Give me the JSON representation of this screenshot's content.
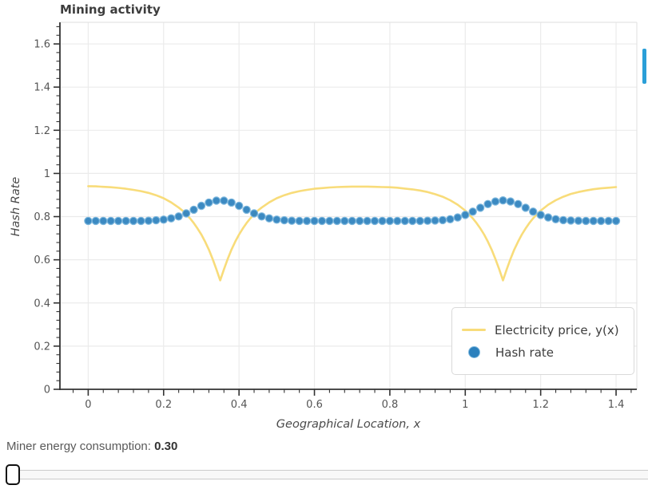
{
  "header": {
    "title": "Mining activity"
  },
  "chart_data": {
    "type": "line",
    "title": "Mining activity",
    "xlabel": "Geographical Location, x",
    "ylabel": "Hash Rate",
    "xlim": [
      -0.075,
      1.455
    ],
    "ylim": [
      0,
      1.7
    ],
    "grid": true,
    "minor_tick_step": 0.04,
    "legend_position": "lower-right",
    "x_ticks": {
      "values": [
        0,
        0.2,
        0.4,
        0.6,
        0.8,
        1,
        1.2,
        1.4
      ],
      "labels": [
        "0",
        "0.2",
        "0.4",
        "0.6",
        "0.8",
        "1",
        "1.2",
        "1.4"
      ]
    },
    "y_ticks": {
      "values": [
        0,
        0.2,
        0.4,
        0.6,
        0.8,
        1,
        1.2,
        1.4,
        1.6
      ],
      "labels": [
        "0",
        "0.2",
        "0.4",
        "0.6",
        "0.8",
        "1",
        "1.2",
        "1.4",
        "1.6"
      ]
    },
    "colors": {
      "grid": "#ebebeb",
      "spine_dark": "#333333",
      "spine_light": "#e4e4e4",
      "tick": "#333333",
      "tick_label": "#555555"
    },
    "series": [
      {
        "name": "Electricity price, y(x)",
        "style": "line",
        "color": "#F8DC7A",
        "x": [
          0,
          0.02,
          0.04,
          0.06,
          0.08,
          0.1,
          0.12,
          0.14,
          0.16,
          0.18,
          0.2,
          0.22,
          0.24,
          0.25,
          0.26,
          0.27,
          0.28,
          0.29,
          0.3,
          0.31,
          0.32,
          0.33,
          0.34,
          0.35,
          0.36,
          0.37,
          0.38,
          0.39,
          0.4,
          0.41,
          0.42,
          0.43,
          0.44,
          0.45,
          0.46,
          0.48,
          0.5,
          0.52,
          0.54,
          0.56,
          0.58,
          0.6,
          0.62,
          0.64,
          0.66,
          0.68,
          0.7,
          0.72,
          0.74,
          0.76,
          0.78,
          0.8,
          0.82,
          0.84,
          0.86,
          0.88,
          0.9,
          0.92,
          0.94,
          0.96,
          0.98,
          1,
          1.01,
          1.02,
          1.03,
          1.04,
          1.05,
          1.06,
          1.07,
          1.08,
          1.09,
          1.1,
          1.11,
          1.12,
          1.13,
          1.14,
          1.15,
          1.16,
          1.17,
          1.18,
          1.19,
          1.2,
          1.22,
          1.24,
          1.26,
          1.28,
          1.3,
          1.32,
          1.34,
          1.36,
          1.38,
          1.4
        ],
        "y": [
          0.941,
          0.94,
          0.938,
          0.936,
          0.933,
          0.929,
          0.924,
          0.918,
          0.91,
          0.899,
          0.885,
          0.866,
          0.842,
          0.828,
          0.811,
          0.792,
          0.77,
          0.745,
          0.717,
          0.684,
          0.647,
          0.604,
          0.556,
          0.505,
          0.556,
          0.604,
          0.647,
          0.684,
          0.717,
          0.745,
          0.77,
          0.792,
          0.811,
          0.828,
          0.842,
          0.866,
          0.885,
          0.899,
          0.91,
          0.918,
          0.924,
          0.929,
          0.932,
          0.935,
          0.937,
          0.938,
          0.939,
          0.939,
          0.939,
          0.938,
          0.937,
          0.936,
          0.934,
          0.93,
          0.926,
          0.921,
          0.914,
          0.904,
          0.892,
          0.876,
          0.855,
          0.828,
          0.811,
          0.792,
          0.77,
          0.745,
          0.717,
          0.684,
          0.647,
          0.604,
          0.556,
          0.505,
          0.556,
          0.604,
          0.647,
          0.684,
          0.717,
          0.745,
          0.77,
          0.792,
          0.811,
          0.828,
          0.855,
          0.876,
          0.892,
          0.905,
          0.914,
          0.921,
          0.927,
          0.931,
          0.934,
          0.937
        ]
      },
      {
        "name": "Hash rate",
        "style": "scatter",
        "color": "#2B80BD",
        "x": [
          0,
          0.02,
          0.04,
          0.06,
          0.08,
          0.1,
          0.12,
          0.14,
          0.16,
          0.18,
          0.2,
          0.22,
          0.24,
          0.26,
          0.28,
          0.3,
          0.32,
          0.34,
          0.36,
          0.38,
          0.4,
          0.42,
          0.44,
          0.46,
          0.48,
          0.5,
          0.52,
          0.54,
          0.56,
          0.58,
          0.6,
          0.62,
          0.64,
          0.66,
          0.68,
          0.7,
          0.72,
          0.74,
          0.76,
          0.78,
          0.8,
          0.82,
          0.84,
          0.86,
          0.88,
          0.9,
          0.92,
          0.94,
          0.96,
          0.98,
          1,
          1.02,
          1.04,
          1.06,
          1.08,
          1.1,
          1.12,
          1.14,
          1.16,
          1.18,
          1.2,
          1.22,
          1.24,
          1.26,
          1.28,
          1.3,
          1.32,
          1.34,
          1.36,
          1.38,
          1.4
        ],
        "y": [
          0.78,
          0.78,
          0.78,
          0.78,
          0.78,
          0.78,
          0.78,
          0.78,
          0.781,
          0.783,
          0.786,
          0.792,
          0.801,
          0.815,
          0.832,
          0.85,
          0.865,
          0.874,
          0.874,
          0.865,
          0.85,
          0.832,
          0.815,
          0.801,
          0.792,
          0.786,
          0.783,
          0.781,
          0.78,
          0.78,
          0.78,
          0.78,
          0.78,
          0.78,
          0.78,
          0.78,
          0.78,
          0.78,
          0.78,
          0.78,
          0.78,
          0.78,
          0.78,
          0.78,
          0.78,
          0.781,
          0.782,
          0.784,
          0.788,
          0.796,
          0.808,
          0.823,
          0.841,
          0.858,
          0.87,
          0.875,
          0.87,
          0.858,
          0.841,
          0.823,
          0.808,
          0.796,
          0.788,
          0.784,
          0.782,
          0.781,
          0.78,
          0.78,
          0.78,
          0.78,
          0.78
        ]
      }
    ]
  },
  "footer": {
    "label": "Miner energy consumption:",
    "value": "0.30"
  },
  "slider": {
    "current_value": 0.3,
    "thumb_position": "left"
  },
  "scrollbar": {
    "color": "#2A9FD8"
  }
}
